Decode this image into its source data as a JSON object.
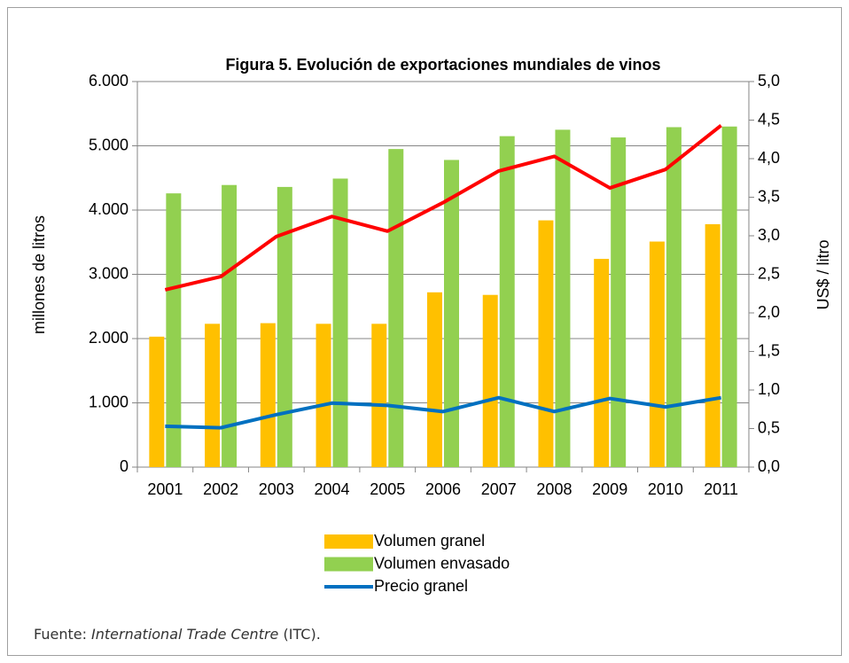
{
  "chart_data": {
    "type": "bar",
    "title": "Figura 5. Evolución de exportaciones mundiales de vinos",
    "ylabel": "millones de litros",
    "y2label": "US$ / litro",
    "categories": [
      "2001",
      "2002",
      "2003",
      "2004",
      "2005",
      "2006",
      "2007",
      "2008",
      "2009",
      "2010",
      "2011"
    ],
    "series": [
      {
        "name": "Volumen granel",
        "type": "bar",
        "color": "#ffc000",
        "values": [
          2030,
          2230,
          2240,
          2230,
          2230,
          2720,
          2680,
          3840,
          3240,
          3510,
          3780
        ]
      },
      {
        "name": "Volumen envasado",
        "type": "bar",
        "color": "#92d050",
        "values": [
          4260,
          4390,
          4360,
          4490,
          4950,
          4780,
          5150,
          5250,
          5130,
          5290,
          5300
        ]
      },
      {
        "name": "Precio granel",
        "type": "line",
        "axis": "y2",
        "color": "#0070c0",
        "values": [
          0.53,
          0.51,
          0.68,
          0.83,
          0.8,
          0.72,
          0.9,
          0.72,
          0.89,
          0.78,
          0.9
        ]
      },
      {
        "type": "line",
        "axis": "y2",
        "color": "#ff0000",
        "values": [
          2.3,
          2.47,
          2.99,
          3.25,
          3.06,
          3.43,
          3.84,
          4.03,
          3.62,
          3.86,
          4.43
        ]
      }
    ],
    "ylim": [
      0,
      6000
    ],
    "yticks": [
      0,
      {
        "value": 1000,
        "label": "1.000"
      },
      {
        "value": 2000,
        "label": "2.000"
      },
      {
        "value": 3000,
        "label": "3.000"
      },
      {
        "value": 4000,
        "label": "4.000"
      },
      {
        "value": 5000,
        "label": "5.000"
      },
      {
        "value": 6000,
        "label": "6.000"
      }
    ],
    "y2lim": [
      0,
      5
    ],
    "y2ticks": [
      {
        "value": 0,
        "label": "0,0"
      },
      {
        "value": 0.5,
        "label": "0,5"
      },
      {
        "value": 1,
        "label": "1,0"
      },
      {
        "value": 1.5,
        "label": "1,5"
      },
      {
        "value": 2,
        "label": "2,0"
      },
      {
        "value": 2.5,
        "label": "2,5"
      },
      {
        "value": 3,
        "label": "3,0"
      },
      {
        "value": 3.5,
        "label": "3,5"
      },
      {
        "value": 4,
        "label": "4,0"
      },
      {
        "value": 4.5,
        "label": "4,5"
      },
      {
        "value": 5,
        "label": "5,0"
      }
    ],
    "grid": true,
    "legend": "bottom",
    "source": {
      "prefix": "Fuente: ",
      "italic": "International Trade Centre",
      "suffix": " (ITC)."
    }
  }
}
